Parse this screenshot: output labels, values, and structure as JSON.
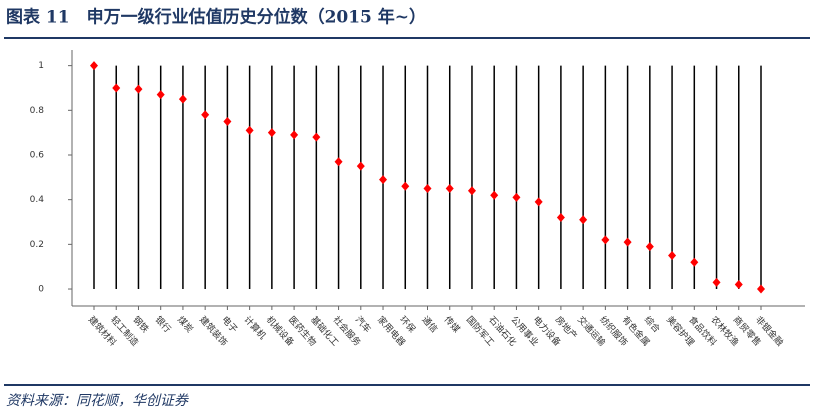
{
  "chart_data": {
    "type": "dot-range",
    "title": "图表 11　申万一级行业估值历史分位数（2015 年~）",
    "source": "资料来源：同花顺，华创证券",
    "categories": [
      "建筑材料",
      "轻工制造",
      "钢铁",
      "银行",
      "煤炭",
      "建筑装饰",
      "电子",
      "计算机",
      "机械设备",
      "医药生物",
      "基础化工",
      "社会服务",
      "汽车",
      "家用电器",
      "环保",
      "通信",
      "传媒",
      "国防军工",
      "石油石化",
      "公用事业",
      "电力设备",
      "房地产",
      "交通运输",
      "纺织服饰",
      "有色金属",
      "综合",
      "美容护理",
      "食品饮料",
      "农林牧渔",
      "商贸零售",
      "非银金融"
    ],
    "values": [
      1.0,
      0.9,
      0.895,
      0.87,
      0.85,
      0.78,
      0.75,
      0.71,
      0.7,
      0.69,
      0.68,
      0.57,
      0.55,
      0.49,
      0.46,
      0.45,
      0.45,
      0.44,
      0.42,
      0.41,
      0.39,
      0.32,
      0.31,
      0.22,
      0.21,
      0.19,
      0.15,
      0.12,
      0.03,
      0.02,
      0.0
    ],
    "color": "#ff0000",
    "ylim": [
      -0.076,
      1.07
    ],
    "yticks": [
      0,
      0.2,
      0.4,
      0.6,
      0.8,
      1
    ]
  }
}
